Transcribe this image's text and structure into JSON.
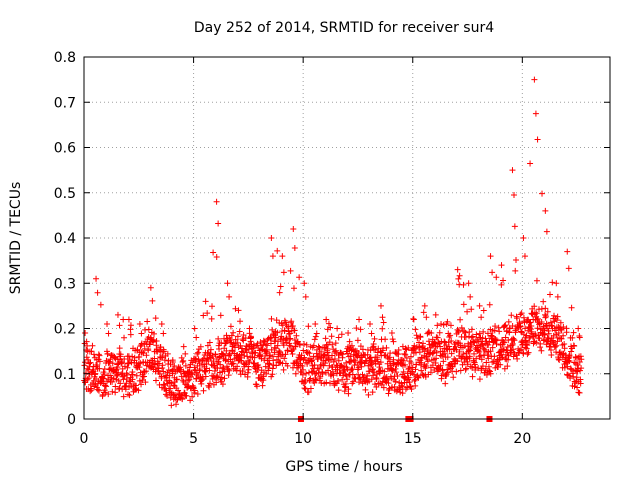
{
  "chart_data": {
    "type": "scatter",
    "title": "Day 252 of 2014, SRMTID for receiver sur4",
    "xlabel": "GPS time / hours",
    "ylabel": "SRMTID / TECUs",
    "xlim": [
      0,
      24
    ],
    "ylim": [
      0,
      0.8
    ],
    "xticks": [
      0,
      5,
      10,
      15,
      20
    ],
    "yticks": [
      0,
      0.1,
      0.2,
      0.3,
      0.4,
      0.5,
      0.6,
      0.7,
      0.8
    ],
    "xtick_labels": [
      "0",
      "5",
      "10",
      "15",
      "20"
    ],
    "ytick_labels": [
      "0",
      "0.1",
      "0.2",
      "0.3",
      "0.4",
      "0.5",
      "0.6",
      "0.7",
      "0.8"
    ],
    "grid": true,
    "marker": "+",
    "series_color": "#ff0000",
    "envelope_x": [
      0,
      0.5,
      1,
      1.5,
      2,
      2.5,
      3,
      3.5,
      4,
      4.5,
      5,
      5.5,
      6,
      6.5,
      7,
      7.5,
      8,
      8.5,
      9,
      9.5,
      10,
      10.5,
      11,
      11.5,
      12,
      12.5,
      13,
      13.5,
      14,
      14.5,
      15,
      15.5,
      16,
      16.5,
      17,
      17.5,
      18,
      18.5,
      19,
      19.5,
      20,
      20.5,
      21,
      21.5,
      22,
      22.5
    ],
    "envelope_median": [
      0.12,
      0.1,
      0.1,
      0.11,
      0.1,
      0.11,
      0.15,
      0.12,
      0.08,
      0.08,
      0.1,
      0.11,
      0.12,
      0.14,
      0.15,
      0.14,
      0.12,
      0.14,
      0.16,
      0.17,
      0.12,
      0.11,
      0.12,
      0.12,
      0.11,
      0.12,
      0.11,
      0.12,
      0.1,
      0.1,
      0.12,
      0.14,
      0.14,
      0.13,
      0.15,
      0.15,
      0.14,
      0.15,
      0.16,
      0.18,
      0.18,
      0.2,
      0.2,
      0.18,
      0.15,
      0.1
    ],
    "envelope_max": [
      0.19,
      0.31,
      0.21,
      0.23,
      0.22,
      0.21,
      0.29,
      0.21,
      0.13,
      0.16,
      0.2,
      0.26,
      0.48,
      0.3,
      0.24,
      0.2,
      0.17,
      0.4,
      0.36,
      0.42,
      0.3,
      0.21,
      0.22,
      0.2,
      0.19,
      0.22,
      0.21,
      0.25,
      0.19,
      0.16,
      0.22,
      0.25,
      0.23,
      0.21,
      0.33,
      0.3,
      0.25,
      0.36,
      0.34,
      0.55,
      0.4,
      0.75,
      0.46,
      0.3,
      0.37,
      0.2
    ],
    "dropouts_x": [
      9.9,
      14.8,
      14.9,
      18.5
    ],
    "dropouts_y": [
      0,
      0,
      0,
      0
    ]
  }
}
